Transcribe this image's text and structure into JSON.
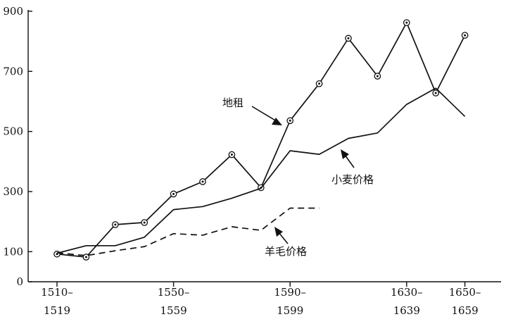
{
  "chart_data": {
    "type": "line",
    "title": "",
    "xlabel": "",
    "ylabel": "",
    "y_ticks": [
      "0",
      "100",
      "300",
      "500",
      "700",
      "900"
    ],
    "y_tick_values": [
      0,
      100,
      300,
      500,
      700,
      900
    ],
    "ylim": [
      0,
      900
    ],
    "x_ticks": [
      {
        "top": "1510–",
        "bottom": "1519"
      },
      {
        "top": "1550–",
        "bottom": "1559"
      },
      {
        "top": "1590–",
        "bottom": "1599"
      },
      {
        "top": "1630–",
        "bottom": "1639"
      },
      {
        "top": "1650–",
        "bottom": "1659"
      }
    ],
    "x_tick_values": [
      1510,
      1550,
      1590,
      1630,
      1650
    ],
    "xlim": [
      1506,
      1665
    ],
    "grid": false,
    "series": [
      {
        "name": "地租",
        "style": "solid-circle-markers",
        "x": [
          1510,
          1520,
          1530,
          1540,
          1550,
          1560,
          1570,
          1580,
          1590,
          1600,
          1610,
          1620,
          1630,
          1640,
          1650
        ],
        "y": [
          92,
          82,
          190,
          197,
          292,
          333,
          423,
          313,
          536,
          659,
          810,
          684,
          862,
          628,
          820
        ]
      },
      {
        "name": "小麦价格",
        "style": "solid",
        "x": [
          1510,
          1520,
          1530,
          1540,
          1550,
          1560,
          1570,
          1580,
          1590,
          1600,
          1610,
          1620,
          1630,
          1640,
          1650
        ],
        "y": [
          95,
          120,
          120,
          148,
          240,
          250,
          278,
          311,
          436,
          424,
          477,
          495,
          590,
          644,
          550
        ]
      },
      {
        "name": "羊毛价格",
        "style": "dashed",
        "x": [
          1510,
          1520,
          1530,
          1540,
          1550,
          1560,
          1570,
          1580,
          1590,
          1600
        ],
        "y": [
          96,
          87,
          103,
          117,
          160,
          155,
          183,
          171,
          245,
          245
        ]
      }
    ],
    "annotations": [
      {
        "label": "地租"
      },
      {
        "label": "小麦价格"
      },
      {
        "label": "羊毛价格"
      }
    ]
  }
}
